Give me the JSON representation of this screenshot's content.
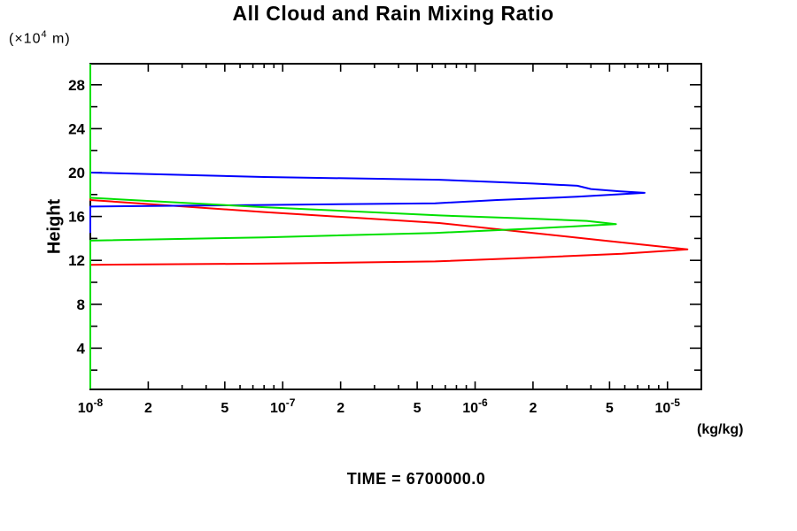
{
  "title": "All Cloud and Rain Mixing Ratio",
  "y_axis_unit": {
    "prefix": "(×10",
    "exponent": "4",
    "suffix": " m)"
  },
  "y_axis_label": "Height",
  "x_axis_unit": "(kg/kg)",
  "footer": "TIME = 6700000.0",
  "colors": {
    "axis": "#000000",
    "blue": "#0000ff",
    "green": "#00e000",
    "red": "#ff0000"
  },
  "chart_data": {
    "type": "line",
    "title": "All Cloud and Rain Mixing Ratio",
    "xlabel": "(kg/kg)",
    "ylabel": "Height (×10^4 m)",
    "x_scale": "log",
    "xlim": [
      1e-08,
      1.5e-05
    ],
    "ylim": [
      0,
      30
    ],
    "grid": false,
    "legend": "none",
    "annotation": "TIME = 6700000.0",
    "x_ticks_labeled": [
      {
        "v": 1e-08,
        "base": "10",
        "exp": "-8"
      },
      {
        "v": 2e-08,
        "base": "2"
      },
      {
        "v": 5e-08,
        "base": "5"
      },
      {
        "v": 1e-07,
        "base": "10",
        "exp": "-7"
      },
      {
        "v": 2e-07,
        "base": "2"
      },
      {
        "v": 5e-07,
        "base": "5"
      },
      {
        "v": 1e-06,
        "base": "10",
        "exp": "-6"
      },
      {
        "v": 2e-06,
        "base": "2"
      },
      {
        "v": 5e-06,
        "base": "5"
      },
      {
        "v": 1e-05,
        "base": "10",
        "exp": "-5"
      }
    ],
    "y_ticks_labeled": [
      4,
      8,
      12,
      16,
      20,
      24,
      28
    ],
    "y_tick_minor_step": 2,
    "series": [
      {
        "name": "red-curve",
        "color": "#ff0000",
        "peak": {
          "height_1e4m": 13.0,
          "value_kgkg": 1.27e-05
        },
        "points_h_v": [
          [
            29.9,
            1e-08
          ],
          [
            17.5,
            1e-08
          ],
          [
            16.4,
            8e-08
          ],
          [
            15.4,
            6.5e-07
          ],
          [
            14.5,
            2e-06
          ],
          [
            13.8,
            4.7e-06
          ],
          [
            13.3,
            8.8e-06
          ],
          [
            13.0,
            1.27e-05
          ],
          [
            12.6,
            5.8e-06
          ],
          [
            12.25,
            2e-06
          ],
          [
            11.9,
            6.2e-07
          ],
          [
            11.7,
            8e-08
          ],
          [
            11.6,
            1e-08
          ],
          [
            0.3,
            1e-08
          ]
        ]
      },
      {
        "name": "blue-curve",
        "color": "#0000ff",
        "peak": {
          "height_1e4m": 18.1,
          "value_kgkg": 7.6e-06
        },
        "points_h_v": [
          [
            29.9,
            1e-08
          ],
          [
            20.0,
            1e-08
          ],
          [
            19.6,
            8e-08
          ],
          [
            19.35,
            6.5e-07
          ],
          [
            19.0,
            2e-06
          ],
          [
            18.8,
            3.4e-06
          ],
          [
            18.5,
            4e-06
          ],
          [
            18.3,
            5.6e-06
          ],
          [
            18.15,
            7.6e-06
          ],
          [
            17.8,
            3.4e-06
          ],
          [
            17.5,
            1.3e-06
          ],
          [
            17.2,
            6.2e-07
          ],
          [
            17.05,
            8e-08
          ],
          [
            16.9,
            1e-08
          ],
          [
            14.5,
            1e-08
          ]
        ]
      },
      {
        "name": "green-curve",
        "color": "#00e000",
        "peak": {
          "height_1e4m": 15.3,
          "value_kgkg": 5.4e-06
        },
        "points_h_v": [
          [
            29.9,
            1e-08
          ],
          [
            17.7,
            1e-08
          ],
          [
            16.85,
            8e-08
          ],
          [
            16.1,
            6.5e-07
          ],
          [
            15.8,
            2e-06
          ],
          [
            15.6,
            3.8e-06
          ],
          [
            15.3,
            5.4e-06
          ],
          [
            14.9,
            2e-06
          ],
          [
            14.5,
            6.2e-07
          ],
          [
            14.1,
            8e-08
          ],
          [
            13.8,
            1e-08
          ],
          [
            0.3,
            1e-08
          ]
        ]
      }
    ]
  }
}
